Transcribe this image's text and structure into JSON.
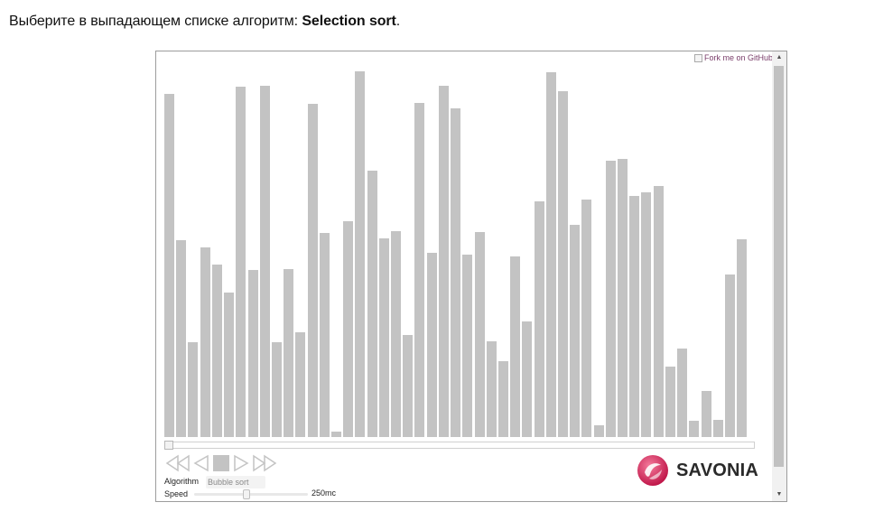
{
  "instruction": {
    "prefix": "Выберите в выпадающем списке алгоритм: ",
    "algorithm": "Selection sort",
    "suffix": "."
  },
  "fork_link": {
    "text": "Fork me on GitHub"
  },
  "visualizer": {
    "bar_color": "#c3c3c3",
    "max_value": 405,
    "values": [
      380,
      218,
      105,
      210,
      191,
      160,
      388,
      185,
      389,
      105,
      186,
      116,
      369,
      226,
      6,
      239,
      405,
      295,
      220,
      228,
      113,
      370,
      204,
      389,
      364,
      202,
      227,
      106,
      84,
      200,
      128,
      261,
      404,
      383,
      235,
      263,
      13,
      306,
      308,
      267,
      271,
      278,
      78,
      98,
      18,
      51,
      19,
      180,
      219
    ]
  },
  "controls": {
    "algorithm_label": "Algorithm",
    "algorithm_value": "Bubble sort",
    "speed_label": "Speed",
    "speed_value": "250mc",
    "speed_fraction": 0.46,
    "progress_fraction": 0
  },
  "logo": {
    "text": "SAVONIA",
    "accent_color": "#e2275f"
  },
  "scrollbar": {
    "up_arrow": "▲",
    "down_arrow": "▼"
  }
}
